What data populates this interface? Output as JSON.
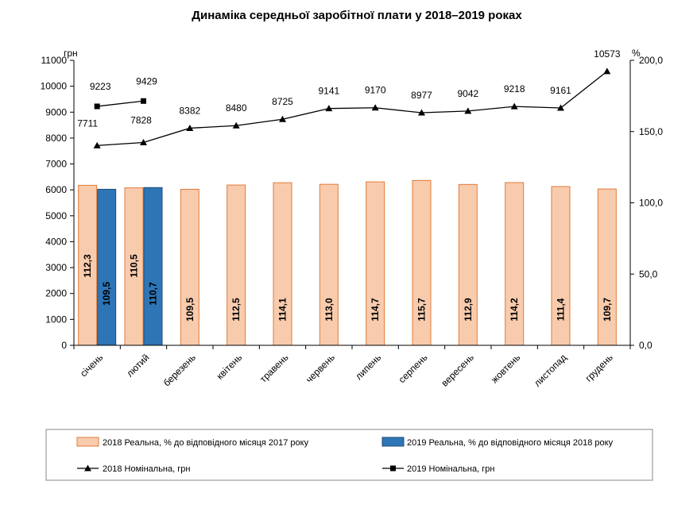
{
  "chart_data": {
    "type": "bar",
    "title": "Динаміка середньої заробітної плати у 2018–2019 роках",
    "categories": [
      "січень",
      "лютий",
      "березень",
      "квітень",
      "травень",
      "червень",
      "липень",
      "серпень",
      "вересень",
      "жовтень",
      "листопад",
      "грудень"
    ],
    "left_axis": {
      "unit": "грн",
      "min": 0,
      "max": 11000,
      "step": 1000,
      "ticks": [
        "0",
        "1000",
        "2000",
        "3000",
        "4000",
        "5000",
        "6000",
        "7000",
        "8000",
        "9000",
        "10000",
        "11000"
      ]
    },
    "right_axis": {
      "unit": "%",
      "min": 0,
      "max": 200,
      "step": 50,
      "ticks": [
        "0,0",
        "50,0",
        "100,0",
        "150,0",
        "200,0"
      ]
    },
    "series": [
      {
        "name": "2018 Реальна, % до відповідного місяця 2017 року",
        "type": "bar",
        "axis": "right",
        "color": "#F8CBAD",
        "border": "#E07B39",
        "values": [
          112.3,
          110.5,
          109.5,
          112.5,
          114.1,
          113.0,
          114.7,
          115.7,
          112.9,
          114.2,
          111.4,
          109.7
        ],
        "labels": [
          "112,3",
          "110,5",
          "109,5",
          "112,5",
          "114,1",
          "113,0",
          "114,7",
          "115,7",
          "112,9",
          "114,2",
          "111,4",
          "109,7"
        ]
      },
      {
        "name": "2019 Реальна, % до відповідного місяця 2018 року",
        "type": "bar",
        "axis": "right",
        "color": "#2E75B6",
        "border": "#1F4E79",
        "values": [
          109.5,
          110.7,
          null,
          null,
          null,
          null,
          null,
          null,
          null,
          null,
          null,
          null
        ],
        "labels": [
          "109,5",
          "110,7",
          "",
          "",
          "",
          "",
          "",
          "",
          "",
          "",
          "",
          ""
        ]
      },
      {
        "name": "2018 Номінальна, грн",
        "type": "line",
        "axis": "left",
        "marker": "triangle",
        "color": "#000000",
        "values": [
          7711,
          7828,
          8382,
          8480,
          8725,
          9141,
          9170,
          8977,
          9042,
          9218,
          9161,
          10573
        ],
        "labels": [
          "7711",
          "7828",
          "8382",
          "8480",
          "8725",
          "9141",
          "9170",
          "8977",
          "9042",
          "9218",
          "9161",
          "10573"
        ]
      },
      {
        "name": "2019 Номінальна, грн",
        "type": "line",
        "axis": "left",
        "marker": "square",
        "color": "#000000",
        "values": [
          9223,
          9429,
          null,
          null,
          null,
          null,
          null,
          null,
          null,
          null,
          null,
          null
        ],
        "labels": [
          "9223",
          "9429",
          "",
          "",
          "",
          "",
          "",
          "",
          "",
          "",
          "",
          ""
        ]
      }
    ],
    "legend_position": "bottom",
    "grid": false
  }
}
